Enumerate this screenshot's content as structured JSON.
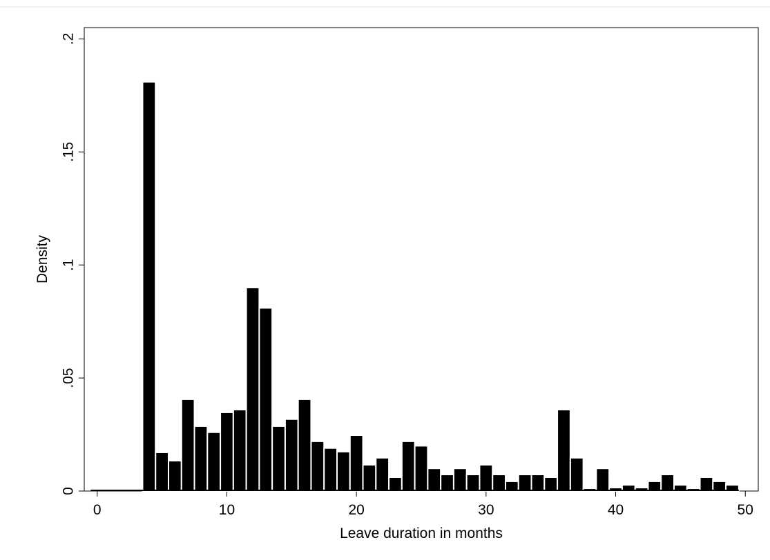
{
  "chart_data": {
    "type": "histogram",
    "x_label": "Leave duration in months",
    "y_label": "Density",
    "bins": [
      -0.5,
      0.5,
      1.5,
      2.5,
      3.5,
      4.5,
      5.5,
      6.5,
      7.5,
      8.5,
      9.5,
      10.5,
      11.5,
      12.5,
      13.5,
      14.5,
      15.5,
      16.5,
      17.5,
      18.5,
      19.5,
      20.5,
      21.5,
      22.5,
      23.5,
      24.5,
      25.5,
      26.5,
      27.5,
      28.5,
      29.5,
      30.5,
      31.5,
      32.5,
      33.5,
      34.5,
      35.5,
      36.5,
      37.5,
      38.5,
      39.5,
      40.5,
      41.5,
      42.5,
      43.5,
      44.5,
      45.5,
      46.5,
      47.5,
      48.5,
      49.5
    ],
    "values": [
      0,
      0,
      0,
      0,
      0.181,
      0.0171,
      0.0134,
      0.0406,
      0.0287,
      0.026,
      0.0348,
      0.036,
      0.09,
      0.081,
      0.0287,
      0.0318,
      0.0406,
      0.022,
      0.019,
      0.0174,
      0.0247,
      0.0116,
      0.0147,
      0.0061,
      0.022,
      0.02,
      0.01,
      0.0073,
      0.01,
      0.0073,
      0.0116,
      0.0073,
      0.0043,
      0.0073,
      0.0073,
      0.0061,
      0.036,
      0.0147,
      0.0012,
      0.01,
      0.0015,
      0.0027,
      0.0015,
      0.0043,
      0.0073,
      0.0027,
      0.0012,
      0.0061,
      0.0043,
      0.0027
    ],
    "color": "#000000",
    "xlim": [
      -1,
      51
    ],
    "xticks": [
      0,
      10,
      20,
      30,
      40,
      50
    ],
    "ylim": [
      0,
      0.205
    ],
    "yticks": [
      0,
      {
        "value": 0.05,
        "label": ".05"
      },
      {
        "value": 0.1,
        "label": ".1"
      },
      {
        "value": 0.15,
        "label": ".15"
      },
      {
        "value": 0.2,
        "label": ".2"
      }
    ]
  }
}
